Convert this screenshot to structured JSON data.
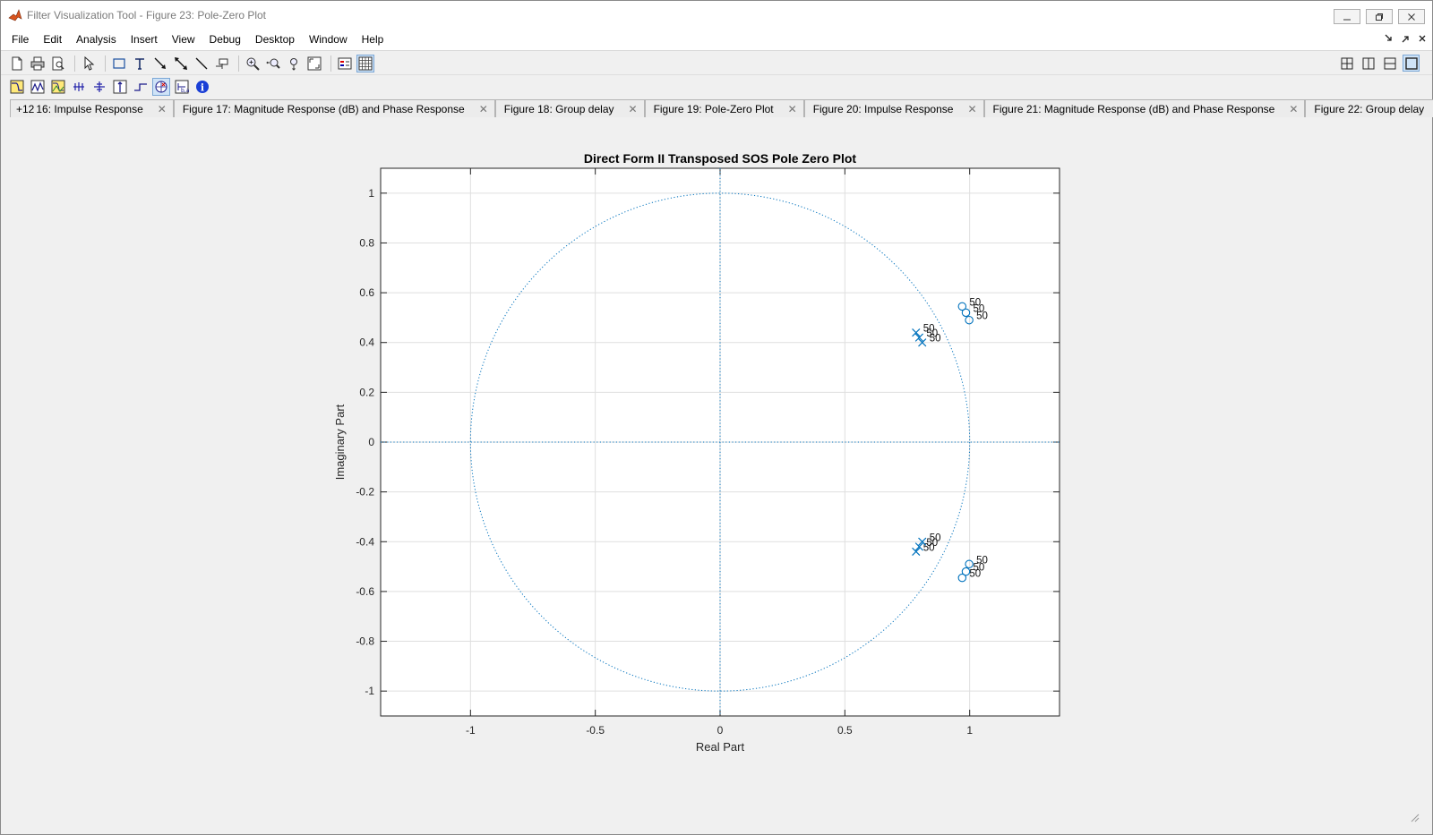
{
  "window": {
    "title": "Filter Visualization Tool - Figure 23: Pole-Zero Plot"
  },
  "menu": [
    "File",
    "Edit",
    "Analysis",
    "Insert",
    "View",
    "Debug",
    "Desktop",
    "Window",
    "Help"
  ],
  "toolbar1_icons": [
    "new-figure-icon",
    "print-icon",
    "print-preview-icon",
    "pointer-icon",
    "rectangle-icon",
    "text-insert-icon",
    "arrow-icon",
    "double-arrow-icon",
    "line-icon",
    "data-cursor-icon",
    "zoom-in-icon",
    "zoom-out-icon",
    "pan-icon",
    "zoom-fit-icon",
    "legend-icon",
    "grid-icon"
  ],
  "toolbar2_icons": [
    "magnitude-response-icon",
    "phase-response-icon",
    "magnitude-phase-icon",
    "group-delay-icon",
    "phase-delay-icon",
    "impulse-response-icon",
    "step-response-icon",
    "pole-zero-icon",
    "filter-coefficients-icon",
    "filter-info-icon"
  ],
  "tabs": [
    {
      "label": "16: Impulse Response",
      "prefix": "+12"
    },
    {
      "label": "Figure 17: Magnitude Response (dB) and Phase Response"
    },
    {
      "label": "Figure 18: Group delay"
    },
    {
      "label": "Figure 19: Pole-Zero Plot"
    },
    {
      "label": "Figure 20: Impulse Response"
    },
    {
      "label": "Figure 21: Magnitude Response (dB) and Phase Response"
    },
    {
      "label": "Figure 22: Group delay"
    }
  ],
  "chart_data": {
    "type": "scatter",
    "title": "Direct Form II Transposed SOS Pole Zero Plot",
    "xlabel": "Real Part",
    "ylabel": "Imaginary Part",
    "xlim": [
      -1.36,
      1.36
    ],
    "ylim": [
      -1.1,
      1.1
    ],
    "xticks": [
      "-1",
      "-0.5",
      "0",
      "0.5",
      "1"
    ],
    "xtick_values": [
      -1,
      -0.5,
      0,
      0.5,
      1
    ],
    "yticks": [
      "-1",
      "-0.8",
      "-0.6",
      "-0.4",
      "-0.2",
      "0",
      "0.2",
      "0.4",
      "0.6",
      "0.8",
      "1"
    ],
    "ytick_values": [
      -1,
      -0.8,
      -0.6,
      -0.4,
      -0.2,
      0,
      0.2,
      0.4,
      0.6,
      0.8,
      1
    ],
    "grid": true,
    "unit_circle": true,
    "color": "#0072bd",
    "poles": [
      {
        "x": 0.785,
        "y": 0.44,
        "label": "50"
      },
      {
        "x": 0.798,
        "y": 0.42,
        "label": "50"
      },
      {
        "x": 0.81,
        "y": 0.4,
        "label": "50"
      },
      {
        "x": 0.785,
        "y": -0.44,
        "label": "50"
      },
      {
        "x": 0.798,
        "y": -0.42,
        "label": "50"
      },
      {
        "x": 0.81,
        "y": -0.4,
        "label": "50"
      }
    ],
    "zeros": [
      {
        "x": 0.97,
        "y": 0.545,
        "label": "50"
      },
      {
        "x": 0.985,
        "y": 0.52,
        "label": "50"
      },
      {
        "x": 0.998,
        "y": 0.49,
        "label": "50"
      },
      {
        "x": 0.97,
        "y": -0.545,
        "label": "50"
      },
      {
        "x": 0.985,
        "y": -0.52,
        "label": "50"
      },
      {
        "x": 0.998,
        "y": -0.49,
        "label": "50"
      }
    ]
  }
}
